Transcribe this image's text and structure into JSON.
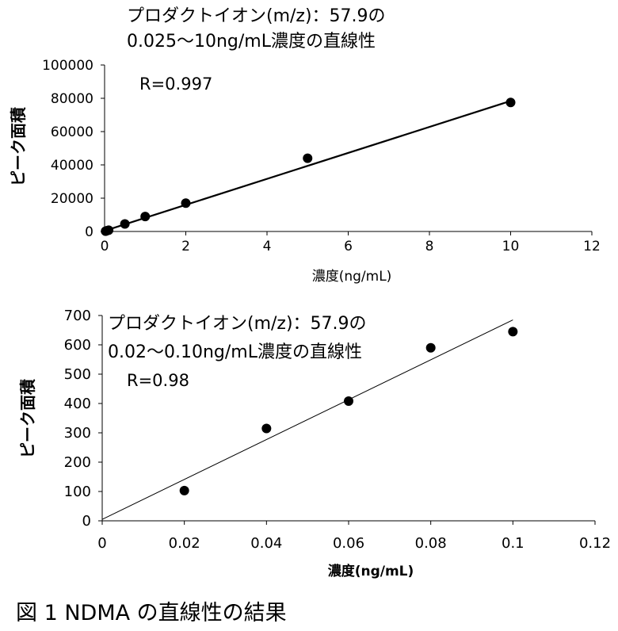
{
  "figure_caption": "図 1 NDMA の直線性の結果",
  "chart_data": [
    {
      "type": "scatter",
      "title_line1": "プロダクトイオン(m/z)：57.9の",
      "title_line2": "0.025〜10ng/mL濃度の直線性",
      "annotation": "R=0.997",
      "xlabel": "濃度(ng/mL)",
      "ylabel": "ピーク面積",
      "xlim": [
        0,
        12
      ],
      "ylim": [
        0,
        100000
      ],
      "x_ticks": [
        0,
        2,
        4,
        6,
        8,
        10,
        12
      ],
      "y_ticks": [
        0,
        20000,
        40000,
        60000,
        80000,
        100000
      ],
      "x_tick_labels": [
        "0",
        "2",
        "4",
        "6",
        "8",
        "10",
        "12"
      ],
      "y_tick_labels": [
        "0",
        "20000",
        "40000",
        "60000",
        "80000",
        "100000"
      ],
      "points": [
        {
          "x": 0.025,
          "y": 200
        },
        {
          "x": 0.05,
          "y": 400
        },
        {
          "x": 0.1,
          "y": 800
        },
        {
          "x": 0.5,
          "y": 4500
        },
        {
          "x": 1,
          "y": 9000
        },
        {
          "x": 2,
          "y": 17000
        },
        {
          "x": 5,
          "y": 44000
        },
        {
          "x": 10,
          "y": 77500
        }
      ],
      "trendline": {
        "slope": 7800,
        "intercept": 400
      },
      "grid": false
    },
    {
      "type": "scatter",
      "title_line1": "プロダクトイオン(m/z)：57.9の",
      "title_line2": "0.02〜0.10ng/mL濃度の直線性",
      "annotation": "R=0.98",
      "xlabel": "濃度(ng/mL)",
      "ylabel": "ピーク面積",
      "xlim": [
        0,
        0.12
      ],
      "ylim": [
        0,
        700
      ],
      "x_ticks": [
        0,
        0.02,
        0.04,
        0.06,
        0.08,
        0.1,
        0.12
      ],
      "y_ticks": [
        0,
        100,
        200,
        300,
        400,
        500,
        600,
        700
      ],
      "x_tick_labels": [
        "0",
        "0.02",
        "0.04",
        "0.06",
        "0.08",
        "0.1",
        "0.12"
      ],
      "y_tick_labels": [
        "0",
        "100",
        "200",
        "300",
        "400",
        "500",
        "600",
        "700"
      ],
      "points": [
        {
          "x": 0.02,
          "y": 103
        },
        {
          "x": 0.04,
          "y": 315
        },
        {
          "x": 0.06,
          "y": 408
        },
        {
          "x": 0.08,
          "y": 590
        },
        {
          "x": 0.1,
          "y": 645
        }
      ],
      "trendline": {
        "slope": 6800,
        "intercept": 5
      },
      "grid": false
    }
  ]
}
